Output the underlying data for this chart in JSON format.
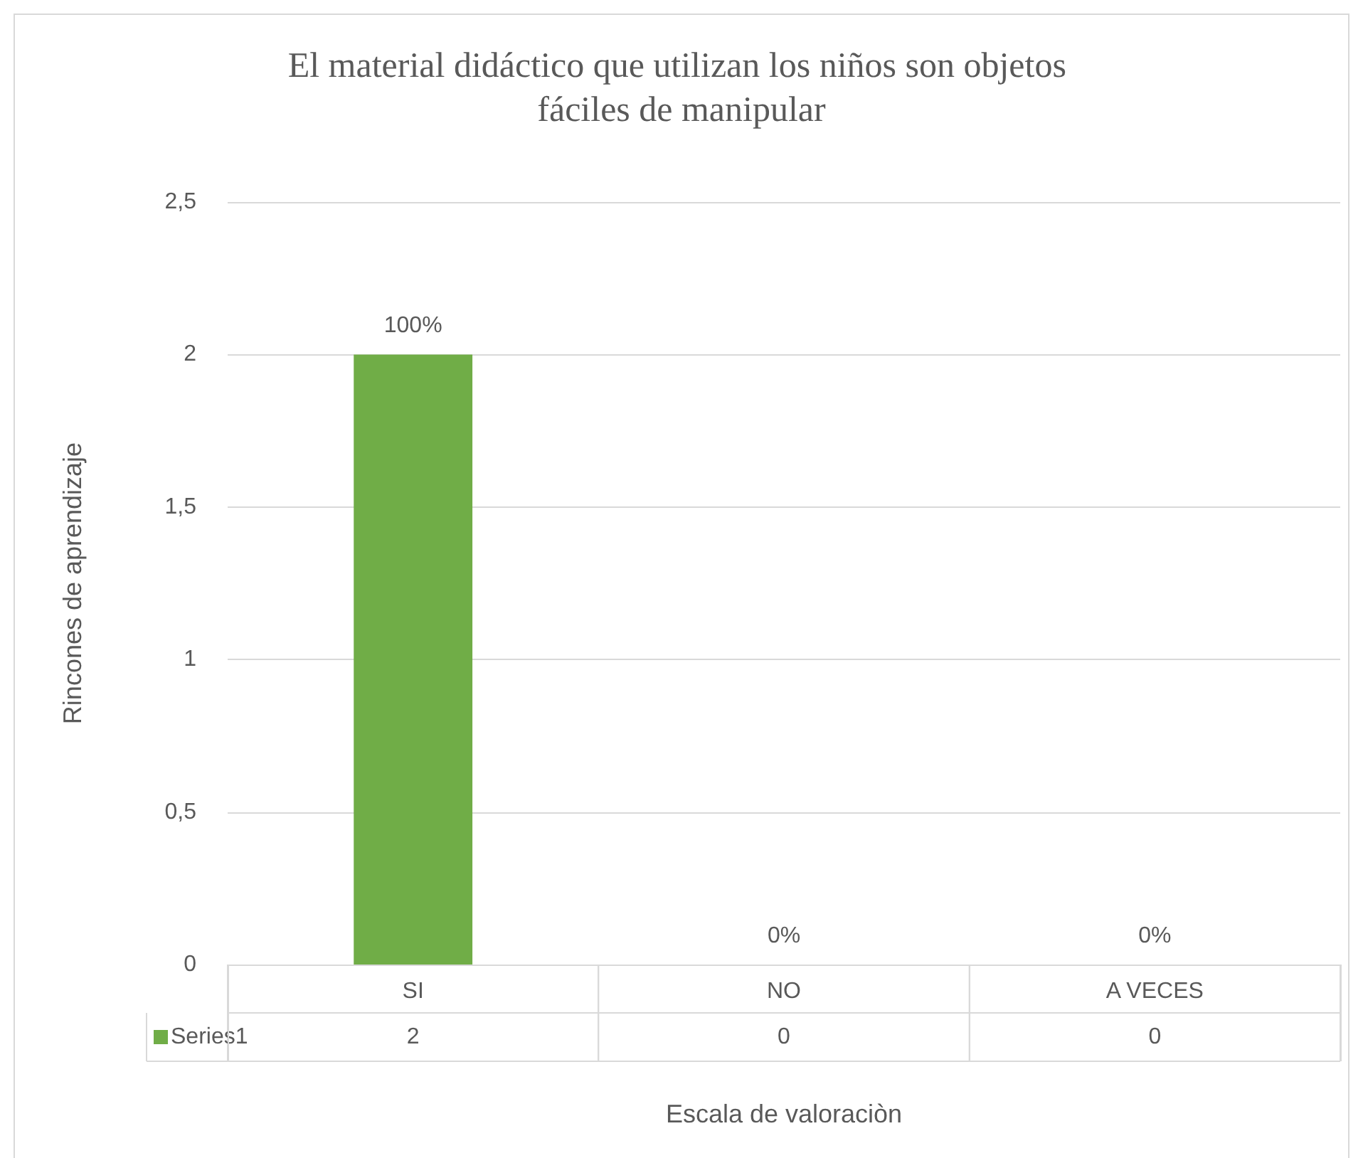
{
  "chart_data": {
    "type": "bar",
    "title": "El material didáctico que utilizan los niños son objetos fáciles de manipular",
    "xlabel": "Escala de valoraciòn",
    "ylabel": "Rincones de aprendizaje",
    "categories": [
      "SI",
      "NO",
      "A VECES"
    ],
    "series": [
      {
        "name": "Series1",
        "color": "#70ad47",
        "values": [
          2,
          0,
          0
        ],
        "value_labels": [
          "2",
          "0",
          "0"
        ]
      }
    ],
    "annotations": [
      {
        "text": "100%",
        "x": "SI",
        "y": 2
      },
      {
        "text": "0%",
        "x": "NO",
        "y": 0
      },
      {
        "text": "0%",
        "x": "A VECES",
        "y": 0
      }
    ],
    "ylim": [
      0,
      2.5
    ],
    "yticks": [
      0,
      {
        "value": 0.5,
        "label": "0,5"
      },
      1,
      {
        "value": 1.5,
        "label": "1,5"
      },
      2,
      {
        "value": 2.5,
        "label": "2,5"
      }
    ],
    "grid": "y",
    "legend": "bottom"
  }
}
